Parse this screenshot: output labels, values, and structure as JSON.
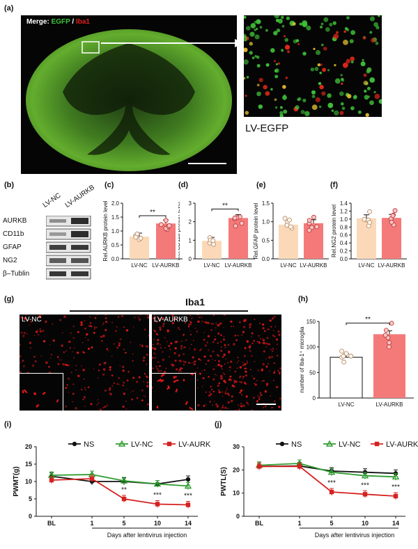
{
  "panels": {
    "a": "(a)",
    "b": "(b)",
    "c": "(c)",
    "d": "(d)",
    "e": "(e)",
    "f": "(f)",
    "g": "(g)",
    "h": "(h)",
    "i": "(i)",
    "j": "(j)"
  },
  "panel_a": {
    "merge_prefix": "Merge:",
    "egfp": "EGFP",
    "slash": "/",
    "iba1": "Iba1",
    "egfp_color": "#3cc43c",
    "iba1_color": "#e02020",
    "inset_label": "LV-EGFP"
  },
  "panel_b": {
    "lanes": [
      "LV-NC",
      "LV-AURKB"
    ],
    "rows": [
      "AURKB",
      "CD11b",
      "GFAP",
      "NG2",
      "β–Tublin"
    ]
  },
  "panel_g": {
    "title": "Iba1",
    "left_label": "LV-NC",
    "right_label": "LV-AURKB"
  },
  "chart_data": [
    {
      "panel": "c",
      "type": "bar",
      "categories": [
        "LV-NC",
        "LV-AURKB"
      ],
      "values": [
        0.8,
        1.27
      ],
      "ylabel": "Rel.AURKB protein level",
      "ylim": [
        0,
        2
      ],
      "yticks": [
        "0.0",
        "0.5",
        "1.0",
        "1.5",
        "2.0"
      ],
      "significance": "**",
      "colors": [
        "#fbd9b8",
        "#f47a7a"
      ]
    },
    {
      "panel": "d",
      "type": "bar",
      "categories": [
        "LV-NC",
        "LV-AURKB"
      ],
      "values": [
        0.97,
        2.2
      ],
      "ylabel": "Rel.CD11b protein level",
      "ylim": [
        0,
        3
      ],
      "yticks": [
        "0",
        "1",
        "2",
        "3"
      ],
      "significance": "**",
      "colors": [
        "#fbd9b8",
        "#f47a7a"
      ]
    },
    {
      "panel": "e",
      "type": "bar",
      "categories": [
        "LV-NC",
        "LV-AURKB"
      ],
      "values": [
        0.92,
        0.96
      ],
      "ylabel": "Rel.GFAP protein level",
      "ylim": [
        0,
        1.5
      ],
      "yticks": [
        "0.0",
        "0.5",
        "1.0",
        "1.5"
      ],
      "significance": "",
      "colors": [
        "#fbd9b8",
        "#f47a7a"
      ]
    },
    {
      "panel": "f",
      "type": "bar",
      "categories": [
        "LV-NC",
        "LV-AURKB"
      ],
      "values": [
        1.02,
        1.03
      ],
      "ylabel": "Rel.NG2 protein level",
      "ylim": [
        0,
        1.4
      ],
      "yticks": [
        "0.0",
        "0.2",
        "0.4",
        "0.6",
        "0.8",
        "1.0",
        "1.2",
        "1.4"
      ],
      "significance": "",
      "colors": [
        "#fbd9b8",
        "#f47a7a"
      ]
    },
    {
      "panel": "h",
      "type": "bar",
      "categories": [
        "LV-NC",
        "LV-AURKB"
      ],
      "values": [
        80,
        125
      ],
      "ylabel": "number of Iba-1⁺ microglia",
      "ylim": [
        0,
        150
      ],
      "yticks": [
        "0",
        "50",
        "100",
        "150"
      ],
      "significance": "**",
      "colors": [
        "#ffffff",
        "#f47a7a"
      ]
    },
    {
      "panel": "i",
      "type": "line",
      "x": [
        "BL",
        "1",
        "5",
        "10",
        "14"
      ],
      "ylabel": "PWMT(g)",
      "xlabel": "Days after lentivirus injection",
      "ylim": [
        0,
        20
      ],
      "yticks": [
        "0",
        "5",
        "10",
        "15",
        "20"
      ],
      "series": [
        {
          "name": "NS",
          "values": [
            11.5,
            10.0,
            10.0,
            9.3,
            10.6
          ],
          "color": "#111111",
          "marker": "circle"
        },
        {
          "name": "LV-NC",
          "values": [
            11.8,
            12.0,
            10.2,
            9.3,
            8.7
          ],
          "color": "#2e9b2e",
          "marker": "triangle"
        },
        {
          "name": "LV-AURKB",
          "values": [
            10.4,
            10.8,
            5.0,
            3.5,
            3.3
          ],
          "color": "#d62020",
          "marker": "square"
        }
      ],
      "annotations": [
        {
          "x": "5",
          "text": "**"
        },
        {
          "x": "10",
          "text": "***"
        },
        {
          "x": "14",
          "text": "***"
        }
      ]
    },
    {
      "panel": "j",
      "type": "line",
      "x": [
        "BL",
        "1",
        "5",
        "10",
        "14"
      ],
      "ylabel": "PWTL(S)",
      "xlabel": "Days after lentivirus injection",
      "ylim": [
        0,
        30
      ],
      "yticks": [
        "0",
        "10",
        "20",
        "30"
      ],
      "series": [
        {
          "name": "NS",
          "values": [
            21.5,
            21.7,
            19.5,
            19.0,
            18.5
          ],
          "color": "#111111",
          "marker": "circle"
        },
        {
          "name": "LV-NC",
          "values": [
            22.0,
            22.8,
            19.0,
            17.5,
            17.0
          ],
          "color": "#2e9b2e",
          "marker": "triangle"
        },
        {
          "name": "LV-AURKB",
          "values": [
            21.5,
            21.5,
            10.5,
            9.5,
            8.7
          ],
          "color": "#d62020",
          "marker": "square"
        }
      ],
      "annotations": [
        {
          "x": "5",
          "text": "***"
        },
        {
          "x": "10",
          "text": "***"
        },
        {
          "x": "14",
          "text": "***"
        }
      ]
    }
  ]
}
